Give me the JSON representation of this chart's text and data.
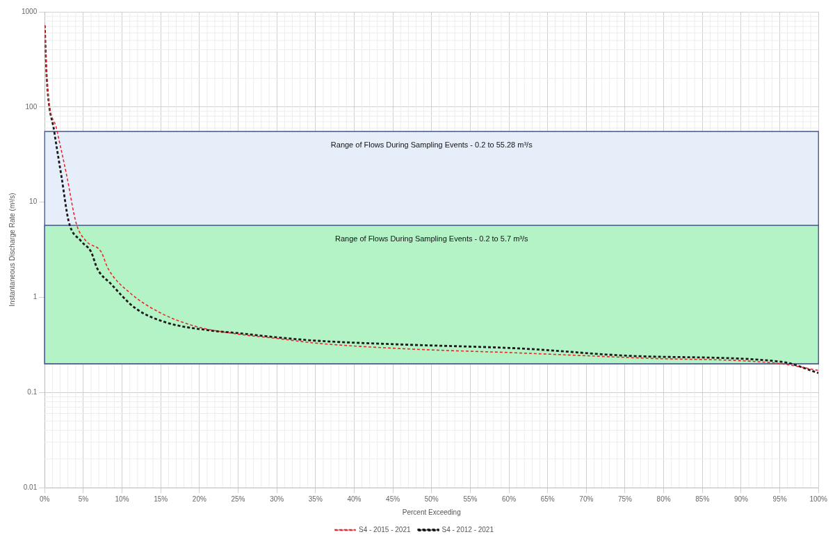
{
  "chart_data": {
    "type": "line",
    "xlabel": "Percent Exceeding",
    "ylabel": "Instantaneous Discharge Rate (m³/s)",
    "xlim": [
      0,
      100
    ],
    "xticks": [
      {
        "value": 0,
        "label": "0%"
      },
      {
        "value": 5,
        "label": "5%"
      },
      {
        "value": 10,
        "label": "10%"
      },
      {
        "value": 15,
        "label": "15%"
      },
      {
        "value": 20,
        "label": "20%"
      },
      {
        "value": 25,
        "label": "25%"
      },
      {
        "value": 30,
        "label": "30%"
      },
      {
        "value": 35,
        "label": "35%"
      },
      {
        "value": 40,
        "label": "40%"
      },
      {
        "value": 45,
        "label": "45%"
      },
      {
        "value": 50,
        "label": "50%"
      },
      {
        "value": 55,
        "label": "55%"
      },
      {
        "value": 60,
        "label": "60%"
      },
      {
        "value": 65,
        "label": "65%"
      },
      {
        "value": 70,
        "label": "70%"
      },
      {
        "value": 75,
        "label": "75%"
      },
      {
        "value": 80,
        "label": "80%"
      },
      {
        "value": 85,
        "label": "85%"
      },
      {
        "value": 90,
        "label": "90%"
      },
      {
        "value": 95,
        "label": "95%"
      },
      {
        "value": 100,
        "label": "100%"
      }
    ],
    "ylim": [
      0.01,
      1000
    ],
    "yticks": [
      0.01,
      0.1,
      1,
      10,
      100,
      1000
    ],
    "log": "y",
    "grid": true,
    "legend": "bottom",
    "marker": "none",
    "bands": [
      {
        "axis": "y",
        "from": 0.2,
        "to": 55.28,
        "label": "Range of Flows During Sampling Events - 0.2 to 55.28 m³/s",
        "color": "#e6eefa"
      },
      {
        "axis": "y",
        "from": 0.2,
        "to": 5.7,
        "label": "Range of Flows During Sampling Events - 0.2 to 5.7 m³/s",
        "color": "#b3f3c6"
      }
    ],
    "series": [
      {
        "name": "S4 - 2015 - 2021",
        "color": "#e8262b",
        "line_style": "dashed",
        "x": [
          0,
          0.3,
          1.56,
          2.84,
          4.1,
          5.36,
          7.3,
          8.2,
          11.1,
          14.9,
          19.3,
          25,
          29.9,
          35,
          45.6,
          61.3,
          76.9,
          95.2,
          100
        ],
        "values": [
          720,
          186,
          58,
          19.2,
          5.9,
          3.9,
          3.0,
          2.0,
          1.1,
          0.69,
          0.5,
          0.41,
          0.37,
          0.33,
          0.29,
          0.26,
          0.23,
          0.2,
          0.17
        ]
      },
      {
        "name": "S4 - 2012 - 2021",
        "color": "#1a1a1a",
        "line_style": "dashed",
        "x": [
          0,
          0.27,
          1.24,
          2.2,
          3.1,
          4.7,
          6.0,
          6.8,
          8.5,
          11.7,
          15.5,
          21.2,
          25,
          29.9,
          35,
          45.6,
          61.3,
          76.9,
          95.2,
          100
        ],
        "values": [
          720,
          200,
          55,
          18,
          6.3,
          3.9,
          3.0,
          2.0,
          1.4,
          0.77,
          0.55,
          0.45,
          0.42,
          0.38,
          0.35,
          0.32,
          0.29,
          0.24,
          0.21,
          0.16
        ]
      }
    ]
  }
}
